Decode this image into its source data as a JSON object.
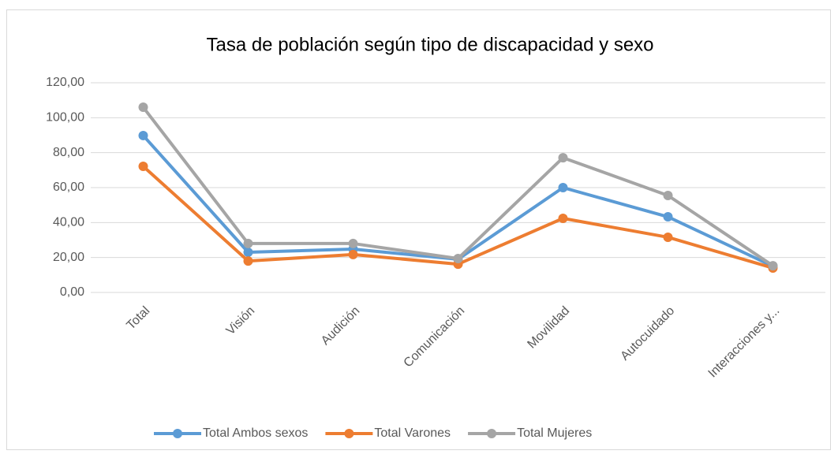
{
  "chart_data": {
    "type": "line",
    "title": "Tasa de población según tipo de discapacidad  y sexo",
    "categories": [
      "Total",
      "Visión",
      "Audición",
      "Comunicación",
      "Movilidad",
      "Autocuidado",
      "Interacciones y..."
    ],
    "series": [
      {
        "name": "Total Ambos sexos",
        "color": "#5b9bd5",
        "values": [
          89.8,
          23.0,
          24.8,
          19.0,
          60.0,
          43.3,
          15.0
        ]
      },
      {
        "name": "Total Varones",
        "color": "#ed7d31",
        "values": [
          72.2,
          18.0,
          21.7,
          16.2,
          42.4,
          31.6,
          14.0
        ]
      },
      {
        "name": "Total Mujeres",
        "color": "#a5a5a5",
        "values": [
          106.0,
          28.0,
          28.0,
          19.4,
          77.1,
          55.5,
          15.3
        ]
      }
    ],
    "ylim": [
      0,
      120
    ],
    "yticks": [
      {
        "value": 0,
        "label": "0,00"
      },
      {
        "value": 20,
        "label": "20,00"
      },
      {
        "value": 40,
        "label": "40,00"
      },
      {
        "value": 60,
        "label": "60,00"
      },
      {
        "value": 80,
        "label": "80,00"
      },
      {
        "value": 100,
        "label": "100,00"
      },
      {
        "value": 120,
        "label": "120,00"
      }
    ],
    "grid": true,
    "legend": "bottom"
  }
}
